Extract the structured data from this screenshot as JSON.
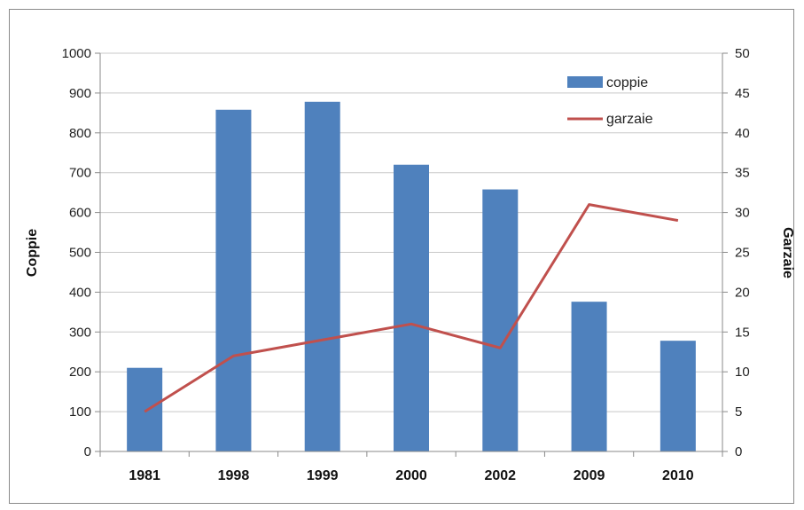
{
  "chart_data": {
    "type": "bar",
    "categories": [
      "1981",
      "1998",
      "1999",
      "2000",
      "2002",
      "2009",
      "2010"
    ],
    "series": [
      {
        "name": "coppie",
        "type": "bar",
        "axis": "left",
        "color": "#4f81bd",
        "values": [
          210,
          858,
          878,
          720,
          658,
          376,
          278
        ]
      },
      {
        "name": "garzaie",
        "type": "line",
        "axis": "right",
        "color": "#c0504d",
        "values": [
          5,
          12,
          14,
          16,
          13,
          31,
          29
        ]
      }
    ],
    "title": "",
    "xlabel": "",
    "ylabel": "Coppie",
    "y2label": "Garzaie",
    "ylim": [
      0,
      1000
    ],
    "y2lim": [
      0,
      50
    ],
    "yticks": [
      "0",
      "100",
      "200",
      "300",
      "400",
      "500",
      "600",
      "700",
      "800",
      "900",
      "1000"
    ],
    "y2ticks": [
      "0",
      "5",
      "10",
      "15",
      "20",
      "25",
      "30",
      "35",
      "40",
      "45",
      "50"
    ],
    "grid": true,
    "legend_position": "top-right"
  }
}
